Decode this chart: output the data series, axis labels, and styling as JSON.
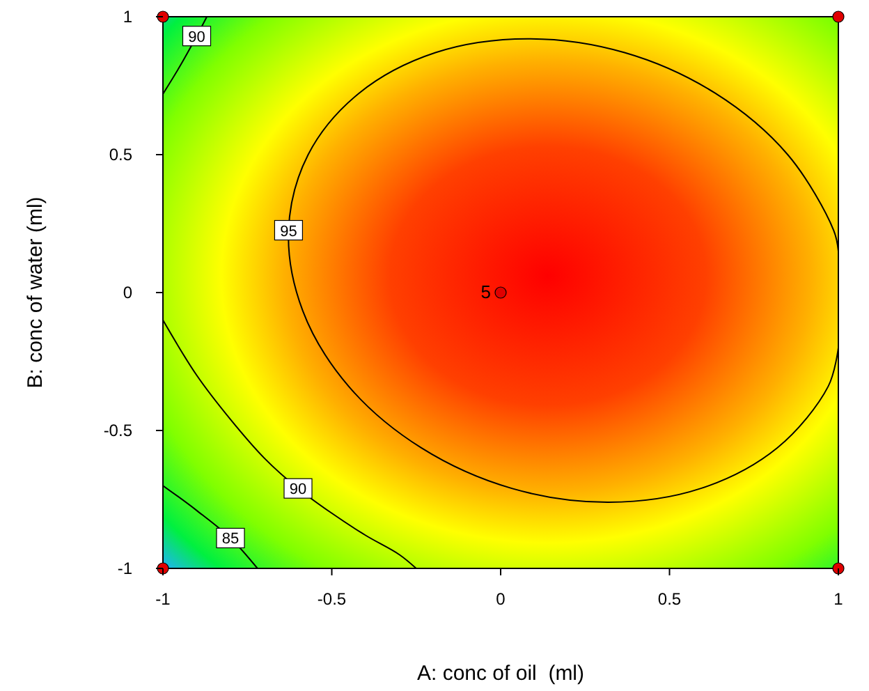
{
  "chart_data": {
    "type": "line",
    "xlabel": "A: conc of oil  (ml)",
    "ylabel": "B: conc of water (ml)",
    "xlim": [
      -1,
      1
    ],
    "ylim": [
      -1,
      1
    ],
    "xticks": [
      -1,
      -0.5,
      0,
      0.5,
      1
    ],
    "yticks": [
      -1,
      -0.5,
      0,
      0.5,
      1
    ],
    "grid": false,
    "line_style": "solid",
    "series": [
      {
        "name": "95",
        "color": "#000000",
        "x": [
          1,
          0.986,
          0.85,
          0.635,
          0.367,
          0.08,
          -0.193,
          -0.419,
          -0.57,
          -0.628,
          -0.586,
          -0.45,
          -0.235,
          0.033,
          0.32,
          0.593,
          0.819,
          0.97,
          1
        ],
        "values": [
          0.15,
          0.226,
          0.5,
          0.723,
          0.87,
          0.92,
          0.87,
          0.723,
          0.5,
          0.226,
          -0.066,
          -0.34,
          -0.563,
          -0.71,
          -0.76,
          -0.71,
          -0.563,
          -0.34,
          -0.2
        ]
      },
      {
        "name": "90",
        "color": "#000000",
        "x": [
          -1,
          -0.95,
          -0.9,
          -0.87
        ],
        "values": [
          0.72,
          0.82,
          0.93,
          1
        ]
      },
      {
        "name": "90",
        "color": "#000000",
        "x": [
          -1,
          -0.9,
          -0.8,
          -0.7,
          -0.6,
          -0.5,
          -0.4,
          -0.3,
          -0.25
        ],
        "values": [
          -0.1,
          -0.3,
          -0.46,
          -0.6,
          -0.71,
          -0.8,
          -0.88,
          -0.95,
          -1
        ]
      },
      {
        "name": "85",
        "color": "#000000",
        "x": [
          -1,
          -0.9,
          -0.8,
          -0.72
        ],
        "values": [
          -0.7,
          -0.79,
          -0.89,
          -1
        ]
      },
      {
        "type": "scatter",
        "marker": "circle",
        "color": "#e00000",
        "x": [
          -1,
          1,
          -1,
          1,
          0
        ],
        "values": [
          1,
          1,
          -1,
          -1,
          0
        ]
      }
    ],
    "annotations": [
      {
        "text": "5",
        "x": 0,
        "y": 0
      }
    ]
  }
}
